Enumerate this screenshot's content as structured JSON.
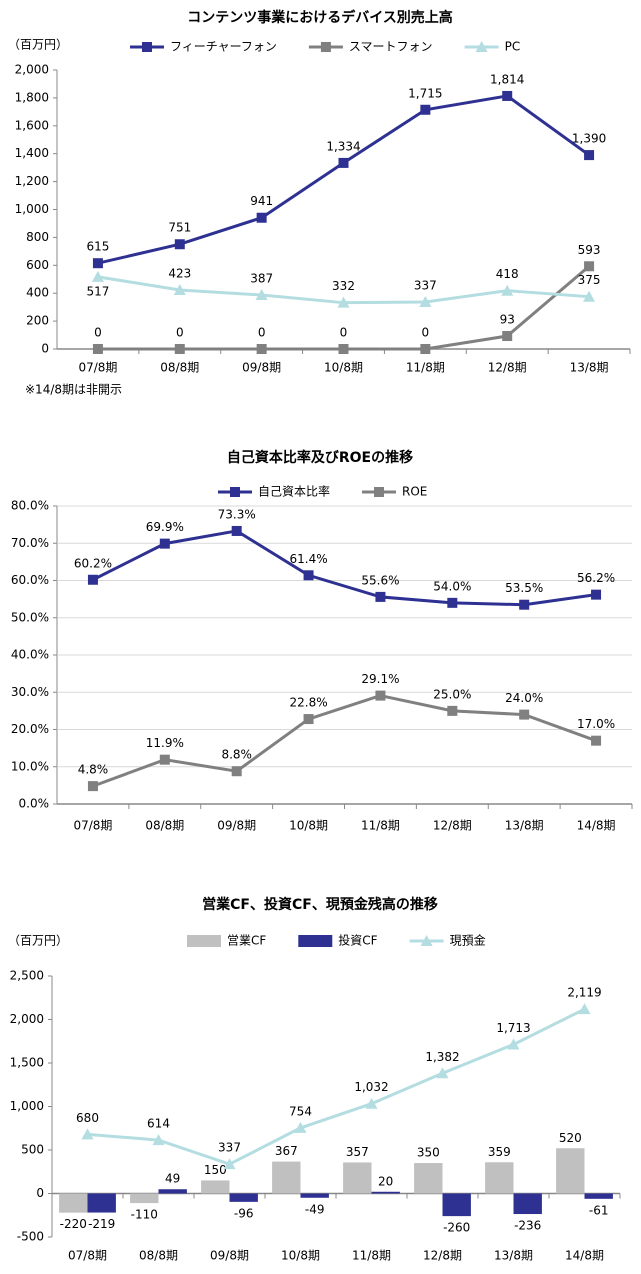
{
  "chart_data": [
    {
      "type": "line",
      "title": "コンテンツ事業におけるデバイス別売上高",
      "y_axis_label": "（百万円）",
      "note": "※14/8期は非開示",
      "categories": [
        "07/8期",
        "08/8期",
        "09/8期",
        "10/8期",
        "11/8期",
        "12/8期",
        "13/8期"
      ],
      "series": [
        {
          "name": "フィーチャーフォン",
          "color": "#2e3192",
          "marker": "square",
          "values": [
            615,
            751,
            941,
            1334,
            1715,
            1814,
            1390
          ],
          "value_labels": [
            "615",
            "751",
            "941",
            "1,334",
            "1,715",
            "1,814",
            "1,390"
          ]
        },
        {
          "name": "スマートフォン",
          "color": "#808080",
          "marker": "square",
          "values": [
            0,
            0,
            0,
            0,
            0,
            93,
            593
          ]
        },
        {
          "name": "PC",
          "color": "#b3dde0",
          "marker": "triangle",
          "values": [
            517,
            423,
            387,
            332,
            337,
            418,
            375
          ]
        }
      ],
      "ylim": [
        0,
        2000
      ],
      "yticks": [
        0,
        200,
        400,
        600,
        800,
        {
          "value": 1000,
          "label": "1,000"
        },
        {
          "value": 1200,
          "label": "1,200"
        },
        {
          "value": 1400,
          "label": "1,400"
        },
        {
          "value": 1600,
          "label": "1,600"
        },
        {
          "value": 1800,
          "label": "1,800"
        },
        {
          "value": 2000,
          "label": "2,000"
        }
      ],
      "grid": false
    },
    {
      "type": "line",
      "title": "自己資本比率及びROEの推移",
      "categories": [
        "07/8期",
        "08/8期",
        "09/8期",
        "10/8期",
        "11/8期",
        "12/8期",
        "13/8期",
        "14/8期"
      ],
      "series": [
        {
          "name": "自己資本比率",
          "color": "#2e3192",
          "marker": "square",
          "values": [
            60.2,
            69.9,
            73.3,
            61.4,
            55.6,
            54.0,
            53.5,
            56.2
          ],
          "value_labels": [
            "60.2%",
            "69.9%",
            "73.3%",
            "61.4%",
            "55.6%",
            "54.0%",
            "53.5%",
            "56.2%"
          ]
        },
        {
          "name": "ROE",
          "color": "#808080",
          "marker": "square",
          "values": [
            4.8,
            11.9,
            8.8,
            22.8,
            29.1,
            25.0,
            24.0,
            17.0
          ],
          "value_labels": [
            "4.8%",
            "11.9%",
            "8.8%",
            "22.8%",
            "29.1%",
            "25.0%",
            "24.0%",
            "17.0%"
          ]
        }
      ],
      "ylim": [
        0,
        80
      ],
      "yticks": [
        {
          "value": 0,
          "label": "0.0%"
        },
        {
          "value": 10,
          "label": "10.0%"
        },
        {
          "value": 20,
          "label": "20.0%"
        },
        {
          "value": 30,
          "label": "30.0%"
        },
        {
          "value": 40,
          "label": "40.0%"
        },
        {
          "value": 50,
          "label": "50.0%"
        },
        {
          "value": 60,
          "label": "60.0%"
        },
        {
          "value": 70,
          "label": "70.0%"
        },
        {
          "value": 80,
          "label": "80.0%"
        }
      ],
      "grid": true
    },
    {
      "type": "bar-line",
      "title": "営業CF、投資CF、現預金残高の推移",
      "y_axis_label": "（百万円）",
      "categories": [
        "07/8期",
        "08/8期",
        "09/8期",
        "10/8期",
        "11/8期",
        "12/8期",
        "13/8期",
        "14/8期"
      ],
      "series": [
        {
          "name": "営業CF",
          "color": "#c0c0c0",
          "kind": "bar",
          "values": [
            -220,
            -110,
            150,
            367,
            357,
            350,
            359,
            520
          ]
        },
        {
          "name": "投資CF",
          "color": "#2e3192",
          "kind": "bar",
          "values": [
            -219,
            49,
            -96,
            -49,
            20,
            -260,
            -236,
            -61
          ]
        },
        {
          "name": "現預金",
          "color": "#b3dde0",
          "kind": "line",
          "marker": "triangle",
          "values": [
            680,
            614,
            337,
            754,
            1032,
            1382,
            1713,
            2119
          ],
          "value_labels": [
            "680",
            "614",
            "337",
            "754",
            "1,032",
            "1,382",
            "1,713",
            "2,119"
          ]
        }
      ],
      "ylim": [
        -500,
        2500
      ],
      "yticks": [
        -500,
        0,
        500,
        {
          "value": 1000,
          "label": "1,000"
        },
        {
          "value": 1500,
          "label": "1,500"
        },
        {
          "value": 2000,
          "label": "2,000"
        },
        {
          "value": 2500,
          "label": "2,500"
        }
      ],
      "grid": false
    }
  ]
}
